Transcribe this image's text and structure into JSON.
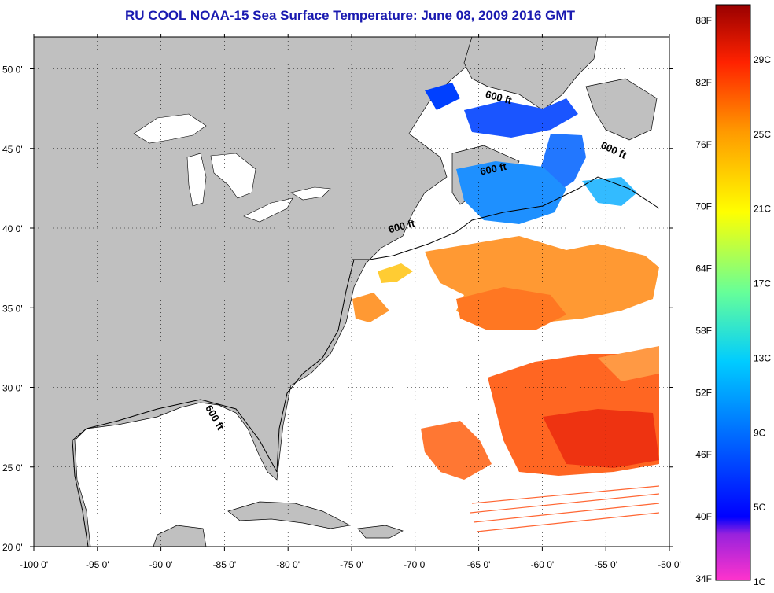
{
  "title": "RU COOL  NOAA-15  Sea Surface Temperature:  June 08, 2009 2016 GMT",
  "map": {
    "lon_range": [
      -100,
      -50
    ],
    "lat_range": [
      20,
      52
    ],
    "lon_ticks": [
      {
        "value": -100,
        "label": "-100 0'"
      },
      {
        "value": -95,
        "label": "-95 0'"
      },
      {
        "value": -90,
        "label": "-90 0'"
      },
      {
        "value": -85,
        "label": "-85 0'"
      },
      {
        "value": -80,
        "label": "-80 0'"
      },
      {
        "value": -75,
        "label": "-75 0'"
      },
      {
        "value": -70,
        "label": "-70 0'"
      },
      {
        "value": -65,
        "label": "-65 0'"
      },
      {
        "value": -60,
        "label": "-60 0'"
      },
      {
        "value": -55,
        "label": "-55 0'"
      },
      {
        "value": -50,
        "label": "-50 0'"
      }
    ],
    "lat_ticks": [
      {
        "value": 20,
        "label": "20 0'"
      },
      {
        "value": 25,
        "label": "25 0'"
      },
      {
        "value": 30,
        "label": "30 0'"
      },
      {
        "value": 35,
        "label": "35 0'"
      },
      {
        "value": 40,
        "label": "40 0'"
      },
      {
        "value": 45,
        "label": "45 0'"
      },
      {
        "value": 50,
        "label": "50 0'"
      }
    ],
    "contour_labels": [
      {
        "text": "600 ft",
        "lon": -63.5,
        "lat": 48.0,
        "rotate": 15
      },
      {
        "text": "600 ft",
        "lon": -54.5,
        "lat": 44.7,
        "rotate": 25
      },
      {
        "text": "600 ft",
        "lon": -63.8,
        "lat": 43.5,
        "rotate": -12
      },
      {
        "text": "600 ft",
        "lon": -71.0,
        "lat": 39.9,
        "rotate": -15
      },
      {
        "text": "600 ft",
        "lon": -86.0,
        "lat": 28.0,
        "rotate": 60
      }
    ],
    "land_color": "#c0c0c0",
    "water_color": "#ffffff"
  },
  "colorbar": {
    "labels_f": [
      "88F",
      "82F",
      "76F",
      "70F",
      "64F",
      "58F",
      "52F",
      "46F",
      "40F",
      "34F"
    ],
    "labels_c": [
      "29C",
      "25C",
      "21C",
      "17C",
      "13C",
      "9C",
      "5C",
      "1C"
    ],
    "colors": [
      "#ff33cc",
      "#9922dd",
      "#0000ff",
      "#00ccff",
      "#66ff99",
      "#ffff00",
      "#ff9900",
      "#ff2200",
      "#990000"
    ]
  }
}
